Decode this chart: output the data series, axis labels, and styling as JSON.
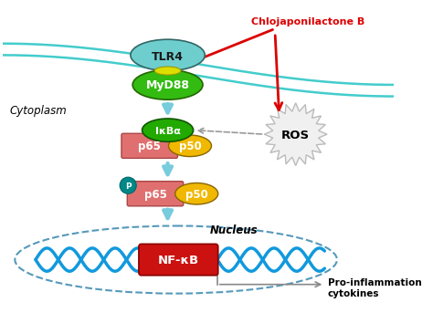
{
  "bg_color": "#ffffff",
  "tlr4_color": "#6ecece",
  "myd88_color": "#33bb11",
  "ikba_color": "#22aa00",
  "p65_color": "#e07070",
  "p50_color": "#f0b800",
  "nfkb_color": "#cc1111",
  "membrane_color": "#44cccc",
  "arrow_color": "#77ccdd",
  "red_arrow_color": "#dd0000",
  "dna_color1": "#1199dd",
  "nucleus_border": "#5599bb",
  "p_circle_color": "#008888",
  "gray_arrow_color": "#888888",
  "chlojaponilactone_label": "Chlojaponilactone B",
  "ros_label": "ROS",
  "cytoplasm_label": "Cytoplasm",
  "nucleus_label": "Nucleus",
  "nfkb_label": "NF-κB",
  "pro_inflam_label": "Pro-inflammation\ncytokines",
  "tlr4_label": "TLR4",
  "myd88_label": "MyD88",
  "ikba_text": "IκBα",
  "p65_label": "p65",
  "p50_label": "p50",
  "p_label": "P"
}
